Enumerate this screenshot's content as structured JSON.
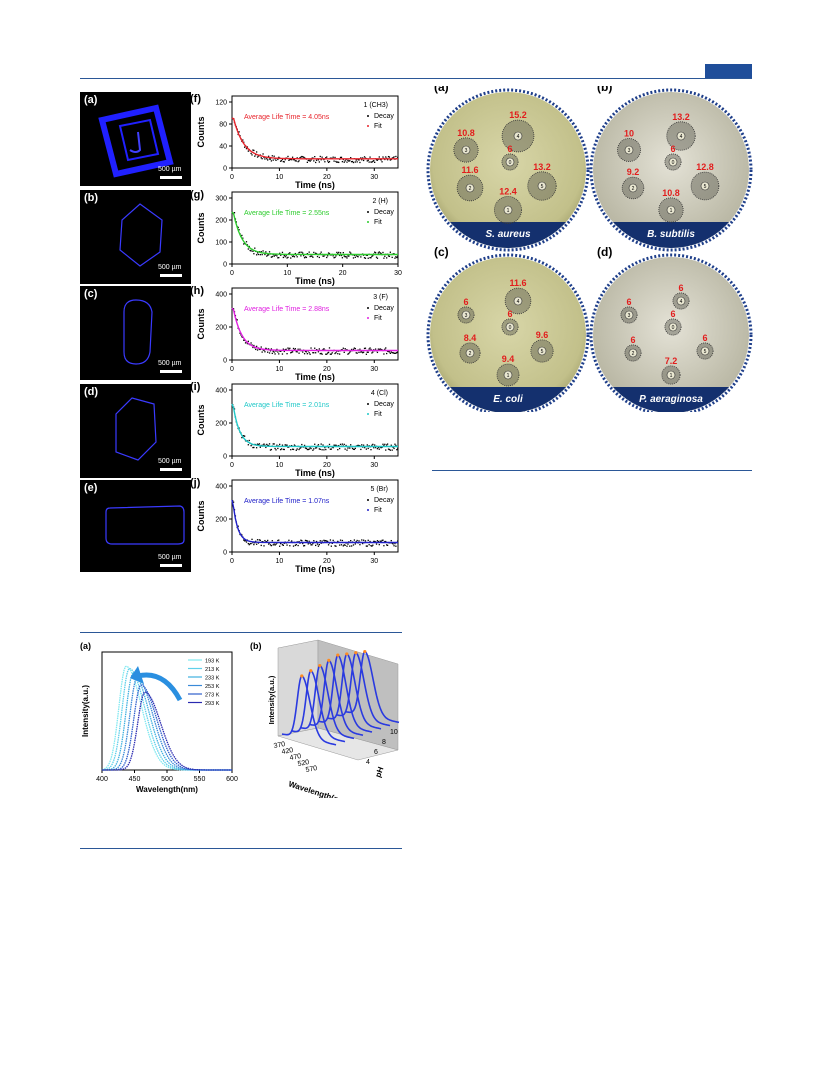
{
  "header": {
    "accent": "#1f4e9a"
  },
  "fluor_panels": [
    {
      "label": "(a)",
      "scale": "500 µm"
    },
    {
      "label": "(b)",
      "scale": "500 µm"
    },
    {
      "label": "(c)",
      "scale": "500 µm"
    },
    {
      "label": "(d)",
      "scale": "500 µm"
    },
    {
      "label": "(e)",
      "scale": "500 µm"
    }
  ],
  "decay": {
    "xlabel": "Time (ns)",
    "ylabel": "Counts",
    "legend": [
      "Decay",
      "Fit"
    ],
    "panels": [
      {
        "label": "(f)",
        "compound": "1 (CH3)",
        "annotation": "Average Life Time = 4.05ns",
        "fit_color": "#e8242c",
        "yticks": [
          "0",
          "40",
          "80",
          "120"
        ],
        "xticks": [
          "0",
          "10",
          "20",
          "30"
        ]
      },
      {
        "label": "(g)",
        "compound": "2 (H)",
        "annotation": "Average Life Time = 2.55ns",
        "fit_color": "#2ecc2e",
        "yticks": [
          "0",
          "100",
          "200",
          "300"
        ],
        "xticks": [
          "0",
          "10",
          "20",
          "30"
        ]
      },
      {
        "label": "(h)",
        "compound": "3 (F)",
        "annotation": "Average Life Time = 2.88ns",
        "fit_color": "#e020e0",
        "yticks": [
          "0",
          "200",
          "400"
        ],
        "xticks": [
          "0",
          "10",
          "20",
          "30"
        ]
      },
      {
        "label": "(i)",
        "compound": "4 (Cl)",
        "annotation": "Average Life Time = 2.01ns",
        "fit_color": "#20c8c8",
        "yticks": [
          "0",
          "200",
          "400"
        ],
        "xticks": [
          "0",
          "10",
          "20",
          "30"
        ]
      },
      {
        "label": "(j)",
        "compound": "5 (Br)",
        "annotation": "Average Life Time = 1.07ns",
        "fit_color": "#2020c8",
        "yticks": [
          "0",
          "200",
          "400"
        ],
        "xticks": [
          "0",
          "10",
          "20",
          "30"
        ]
      }
    ]
  },
  "plates": [
    {
      "label": "(a)",
      "organism": "S. aureus",
      "zones": [
        {
          "n": "1",
          "v": "12.4"
        },
        {
          "n": "2",
          "v": "11.6"
        },
        {
          "n": "3",
          "v": "10.8"
        },
        {
          "n": "4",
          "v": "15.2"
        },
        {
          "n": "5",
          "v": "13.2"
        },
        {
          "n": "0",
          "v": "6"
        }
      ]
    },
    {
      "label": "(b)",
      "organism": "B. subtilis",
      "zones": [
        {
          "n": "1",
          "v": "10.8"
        },
        {
          "n": "2",
          "v": "9.2"
        },
        {
          "n": "3",
          "v": "10"
        },
        {
          "n": "4",
          "v": "13.2"
        },
        {
          "n": "5",
          "v": "12.8"
        },
        {
          "n": "0",
          "v": "6"
        }
      ]
    },
    {
      "label": "(c)",
      "organism": "E. coli",
      "zones": [
        {
          "n": "1",
          "v": "9.4"
        },
        {
          "n": "2",
          "v": "8.4"
        },
        {
          "n": "3",
          "v": "6"
        },
        {
          "n": "4",
          "v": "11.6"
        },
        {
          "n": "5",
          "v": "9.6"
        },
        {
          "n": "0",
          "v": "6"
        }
      ]
    },
    {
      "label": "(d)",
      "organism": "P. aeraginosa",
      "zones": [
        {
          "n": "1",
          "v": "7.2"
        },
        {
          "n": "2",
          "v": "6"
        },
        {
          "n": "3",
          "v": "6"
        },
        {
          "n": "4",
          "v": "6"
        },
        {
          "n": "5",
          "v": "6"
        },
        {
          "n": "0",
          "v": "6"
        }
      ]
    }
  ],
  "temp_chart": {
    "label": "(a)",
    "xlabel": "Wavelength(nm)",
    "ylabel": "Intensity(a.u.)",
    "xticks": [
      "400",
      "450",
      "500",
      "550",
      "600"
    ],
    "legend": [
      "193 K",
      "213 K",
      "233 K",
      "253 K",
      "273 K",
      "293 K"
    ],
    "colors": [
      "#7fe8f0",
      "#5fd0ea",
      "#3fb0e0",
      "#3a8ad8",
      "#2f5fcc",
      "#2a2ab0"
    ]
  },
  "ph_chart": {
    "label": "(b)",
    "xlabel": "Wavelength(nm)",
    "ylabel": "Intensity(a.u.)",
    "zlabel": "pH",
    "xticks": [
      "370",
      "420",
      "470",
      "520",
      "570"
    ],
    "zticks": [
      "4",
      "6",
      "8",
      "10"
    ]
  }
}
